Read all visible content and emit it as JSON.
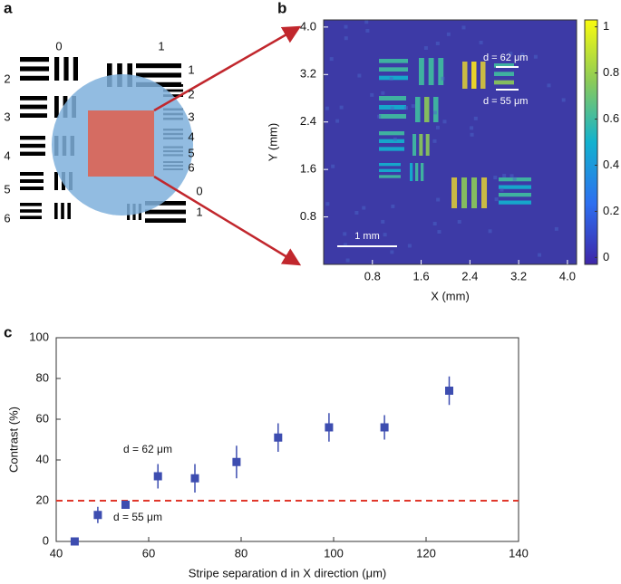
{
  "diagram": {
    "panel_label": "a",
    "top_labels": [
      "0",
      "1"
    ],
    "left_labels": [
      "2",
      "3",
      "4",
      "5",
      "6"
    ],
    "right_labels": [
      "1",
      "2",
      "3",
      "4",
      "5",
      "6"
    ],
    "bottom_right_labels": [
      "0",
      "1"
    ]
  },
  "chart_data": [
    {
      "type": "heatmap",
      "panel_label": "b",
      "xlabel": "X (mm)",
      "ylabel": "Y (mm)",
      "xlim": [
        0,
        4.15
      ],
      "ylim": [
        0,
        4.12
      ],
      "xticks": [
        0.8,
        1.6,
        2.4,
        3.2,
        {
          "value": 4,
          "label": "4.0"
        }
      ],
      "yticks": [
        0.8,
        1.6,
        2.4,
        3.2,
        {
          "value": 4,
          "label": "4.0"
        }
      ],
      "clim": [
        -0.03,
        1.03
      ],
      "colorbar_ticks": [
        0,
        0.2,
        0.4,
        0.6,
        0.8,
        1
      ],
      "annotations": [
        "d = 62 μm",
        "d = 55 μm",
        "1 mm"
      ]
    },
    {
      "type": "scatter",
      "panel_label": "c",
      "xlabel": "Stripe separation d in X direction (μm)",
      "ylabel": "Contrast (%)",
      "xlim": [
        40,
        140
      ],
      "ylim": [
        0,
        100
      ],
      "xticks": [
        40,
        60,
        80,
        100,
        120,
        140
      ],
      "yticks": [
        0,
        20,
        40,
        60,
        80,
        100
      ],
      "x": [
        44,
        49,
        55,
        62,
        70,
        79,
        88,
        99,
        111,
        125
      ],
      "values": [
        0,
        13,
        18,
        32,
        31,
        39,
        51,
        56,
        56,
        74
      ],
      "errors": [
        0,
        4,
        2,
        6,
        7,
        8,
        7,
        7,
        6,
        7
      ],
      "color": "#3d4db0",
      "threshold": 20,
      "threshold_color": "#e0372b",
      "annotations": [
        "d = 62 μm",
        "d = 55 μm"
      ]
    }
  ]
}
